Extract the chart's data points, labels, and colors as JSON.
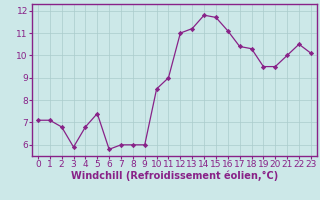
{
  "x": [
    0,
    1,
    2,
    3,
    4,
    5,
    6,
    7,
    8,
    9,
    10,
    11,
    12,
    13,
    14,
    15,
    16,
    17,
    18,
    19,
    20,
    21,
    22,
    23
  ],
  "y": [
    7.1,
    7.1,
    6.8,
    5.9,
    6.8,
    7.4,
    5.8,
    6.0,
    6.0,
    6.0,
    8.5,
    9.0,
    11.0,
    11.2,
    11.8,
    11.7,
    11.1,
    10.4,
    10.3,
    9.5,
    9.5,
    10.0,
    10.5,
    10.1
  ],
  "line_color": "#882288",
  "marker": "D",
  "marker_size": 2.2,
  "bg_color": "#cce8e8",
  "grid_color": "#aacccc",
  "xlabel": "Windchill (Refroidissement éolien,°C)",
  "ylabel": "",
  "title": "",
  "xlim": [
    -0.5,
    23.5
  ],
  "ylim": [
    5.5,
    12.3
  ],
  "yticks": [
    6,
    7,
    8,
    9,
    10,
    11,
    12
  ],
  "xticks": [
    0,
    1,
    2,
    3,
    4,
    5,
    6,
    7,
    8,
    9,
    10,
    11,
    12,
    13,
    14,
    15,
    16,
    17,
    18,
    19,
    20,
    21,
    22,
    23
  ],
  "tick_label_fontsize": 6.5,
  "xlabel_fontsize": 7.0,
  "tick_color": "#882288",
  "spine_color": "#882288",
  "label_color": "#882288"
}
